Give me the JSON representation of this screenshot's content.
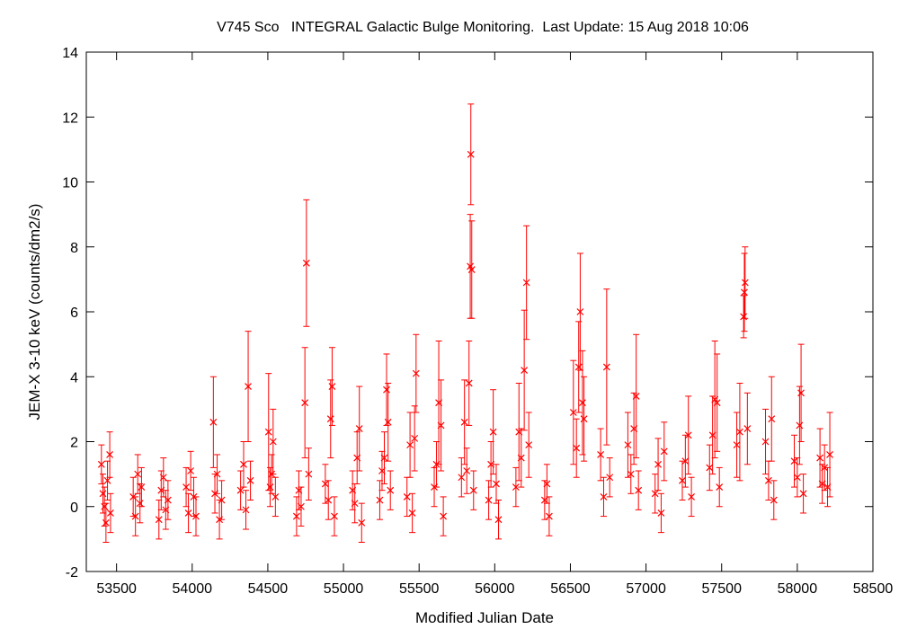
{
  "chart_data": {
    "type": "scatter",
    "title": "V745 Sco   INTEGRAL Galactic Bulge Monitoring.  Last Update: 15 Aug 2018 10:06",
    "xlabel": "Modified Julian Date",
    "ylabel": "JEM-X 3-10 keV (counts/dm2/s)",
    "xlim": [
      53300,
      58500
    ],
    "ylim": [
      -2,
      14
    ],
    "xticks": [
      53500,
      54000,
      54500,
      55000,
      55500,
      56000,
      56500,
      57000,
      57500,
      58000,
      58500
    ],
    "yticks": [
      -2,
      0,
      2,
      4,
      6,
      8,
      10,
      12,
      14
    ],
    "grid": false,
    "legend": "none",
    "marker": "x",
    "error_bars": true,
    "series": [
      {
        "color": "#ff0000",
        "points": [
          {
            "x": 53400,
            "y": 1.3,
            "err": 0.6
          },
          {
            "x": 53410,
            "y": 0.4,
            "err": 0.6
          },
          {
            "x": 53420,
            "y": 0.0,
            "err": 0.6
          },
          {
            "x": 53430,
            "y": -0.5,
            "err": 0.6
          },
          {
            "x": 53440,
            "y": 0.8,
            "err": 0.6
          },
          {
            "x": 53455,
            "y": 1.6,
            "err": 0.7
          },
          {
            "x": 53460,
            "y": -0.2,
            "err": 0.6
          },
          {
            "x": 53610,
            "y": 0.3,
            "err": 0.6
          },
          {
            "x": 53625,
            "y": -0.3,
            "err": 0.6
          },
          {
            "x": 53640,
            "y": 1.0,
            "err": 0.6
          },
          {
            "x": 53655,
            "y": 0.1,
            "err": 0.6
          },
          {
            "x": 53665,
            "y": 0.6,
            "err": 0.6
          },
          {
            "x": 53780,
            "y": -0.4,
            "err": 0.6
          },
          {
            "x": 53795,
            "y": 0.5,
            "err": 0.6
          },
          {
            "x": 53810,
            "y": 0.9,
            "err": 0.6
          },
          {
            "x": 53825,
            "y": -0.1,
            "err": 0.6
          },
          {
            "x": 53840,
            "y": 0.2,
            "err": 0.6
          },
          {
            "x": 53960,
            "y": 0.6,
            "err": 0.6
          },
          {
            "x": 53975,
            "y": -0.2,
            "err": 0.6
          },
          {
            "x": 53990,
            "y": 1.1,
            "err": 0.6
          },
          {
            "x": 54010,
            "y": 0.3,
            "err": 0.6
          },
          {
            "x": 54025,
            "y": -0.3,
            "err": 0.6
          },
          {
            "x": 54140,
            "y": 2.6,
            "err": 1.4
          },
          {
            "x": 54150,
            "y": 0.4,
            "err": 0.6
          },
          {
            "x": 54165,
            "y": 1.0,
            "err": 0.6
          },
          {
            "x": 54180,
            "y": -0.4,
            "err": 0.6
          },
          {
            "x": 54195,
            "y": 0.2,
            "err": 0.6
          },
          {
            "x": 54320,
            "y": 0.5,
            "err": 0.6
          },
          {
            "x": 54340,
            "y": 1.3,
            "err": 0.7
          },
          {
            "x": 54355,
            "y": -0.1,
            "err": 0.6
          },
          {
            "x": 54370,
            "y": 3.7,
            "err": 1.7
          },
          {
            "x": 54385,
            "y": 0.8,
            "err": 0.6
          },
          {
            "x": 54505,
            "y": 2.3,
            "err": 1.8
          },
          {
            "x": 54515,
            "y": 0.6,
            "err": 0.6
          },
          {
            "x": 54525,
            "y": 1.0,
            "err": 0.6
          },
          {
            "x": 54535,
            "y": 2.0,
            "err": 1.0
          },
          {
            "x": 54550,
            "y": 0.3,
            "err": 0.6
          },
          {
            "x": 54690,
            "y": -0.3,
            "err": 0.6
          },
          {
            "x": 54705,
            "y": 0.5,
            "err": 0.6
          },
          {
            "x": 54720,
            "y": 0.0,
            "err": 0.6
          },
          {
            "x": 54745,
            "y": 3.2,
            "err": 1.7
          },
          {
            "x": 54755,
            "y": 7.5,
            "err": 1.95
          },
          {
            "x": 54770,
            "y": 1.0,
            "err": 0.8
          },
          {
            "x": 54880,
            "y": 0.7,
            "err": 0.6
          },
          {
            "x": 54900,
            "y": 0.2,
            "err": 0.6
          },
          {
            "x": 54915,
            "y": 2.7,
            "err": 1.2
          },
          {
            "x": 54925,
            "y": 3.7,
            "err": 1.2
          },
          {
            "x": 54940,
            "y": -0.3,
            "err": 0.6
          },
          {
            "x": 55060,
            "y": 0.5,
            "err": 0.6
          },
          {
            "x": 55075,
            "y": 0.1,
            "err": 0.6
          },
          {
            "x": 55090,
            "y": 1.5,
            "err": 0.8
          },
          {
            "x": 55105,
            "y": 2.4,
            "err": 1.3
          },
          {
            "x": 55120,
            "y": -0.5,
            "err": 0.6
          },
          {
            "x": 55240,
            "y": 0.2,
            "err": 0.6
          },
          {
            "x": 55255,
            "y": 1.1,
            "err": 0.6
          },
          {
            "x": 55270,
            "y": 1.5,
            "err": 0.8
          },
          {
            "x": 55285,
            "y": 3.6,
            "err": 1.1
          },
          {
            "x": 55295,
            "y": 2.6,
            "err": 1.2
          },
          {
            "x": 55310,
            "y": 0.5,
            "err": 0.6
          },
          {
            "x": 55420,
            "y": 0.3,
            "err": 0.6
          },
          {
            "x": 55440,
            "y": 1.9,
            "err": 1.0
          },
          {
            "x": 55455,
            "y": -0.2,
            "err": 0.6
          },
          {
            "x": 55470,
            "y": 2.1,
            "err": 1.0
          },
          {
            "x": 55480,
            "y": 4.1,
            "err": 1.2
          },
          {
            "x": 55600,
            "y": 0.6,
            "err": 0.6
          },
          {
            "x": 55615,
            "y": 1.3,
            "err": 0.7
          },
          {
            "x": 55630,
            "y": 3.2,
            "err": 1.9
          },
          {
            "x": 55645,
            "y": 2.5,
            "err": 1.4
          },
          {
            "x": 55660,
            "y": -0.3,
            "err": 0.6
          },
          {
            "x": 55780,
            "y": 0.9,
            "err": 0.6
          },
          {
            "x": 55800,
            "y": 2.6,
            "err": 1.3
          },
          {
            "x": 55815,
            "y": 1.1,
            "err": 0.7
          },
          {
            "x": 55830,
            "y": 3.8,
            "err": 1.3
          },
          {
            "x": 55838,
            "y": 7.4,
            "err": 1.6
          },
          {
            "x": 55842,
            "y": 10.85,
            "err": 1.55
          },
          {
            "x": 55848,
            "y": 7.3,
            "err": 1.5
          },
          {
            "x": 55860,
            "y": 0.5,
            "err": 0.6
          },
          {
            "x": 55960,
            "y": 0.2,
            "err": 0.6
          },
          {
            "x": 55975,
            "y": 1.3,
            "err": 0.7
          },
          {
            "x": 55990,
            "y": 2.3,
            "err": 1.3
          },
          {
            "x": 56010,
            "y": 0.7,
            "err": 0.6
          },
          {
            "x": 56025,
            "y": -0.4,
            "err": 0.6
          },
          {
            "x": 56140,
            "y": 0.6,
            "err": 0.6
          },
          {
            "x": 56160,
            "y": 2.3,
            "err": 1.5
          },
          {
            "x": 56175,
            "y": 1.5,
            "err": 0.9
          },
          {
            "x": 56195,
            "y": 4.2,
            "err": 1.85
          },
          {
            "x": 56210,
            "y": 6.9,
            "err": 1.75
          },
          {
            "x": 56225,
            "y": 1.9,
            "err": 1.0
          },
          {
            "x": 56330,
            "y": 0.2,
            "err": 0.6
          },
          {
            "x": 56345,
            "y": 0.7,
            "err": 0.6
          },
          {
            "x": 56360,
            "y": -0.3,
            "err": 0.6
          },
          {
            "x": 56520,
            "y": 2.9,
            "err": 1.6
          },
          {
            "x": 56540,
            "y": 1.8,
            "err": 0.9
          },
          {
            "x": 56555,
            "y": 4.3,
            "err": 1.4
          },
          {
            "x": 56565,
            "y": 6.0,
            "err": 1.8
          },
          {
            "x": 56580,
            "y": 3.2,
            "err": 1.6
          },
          {
            "x": 56590,
            "y": 2.7,
            "err": 1.3
          },
          {
            "x": 56700,
            "y": 1.6,
            "err": 0.8
          },
          {
            "x": 56720,
            "y": 0.3,
            "err": 0.6
          },
          {
            "x": 56740,
            "y": 4.3,
            "err": 2.4
          },
          {
            "x": 56760,
            "y": 0.9,
            "err": 0.6
          },
          {
            "x": 56880,
            "y": 1.9,
            "err": 1.0
          },
          {
            "x": 56900,
            "y": 1.0,
            "err": 0.6
          },
          {
            "x": 56920,
            "y": 2.4,
            "err": 1.1
          },
          {
            "x": 56935,
            "y": 3.4,
            "err": 1.9
          },
          {
            "x": 56950,
            "y": 0.5,
            "err": 0.6
          },
          {
            "x": 57060,
            "y": 0.4,
            "err": 0.6
          },
          {
            "x": 57080,
            "y": 1.3,
            "err": 0.8
          },
          {
            "x": 57100,
            "y": -0.2,
            "err": 0.6
          },
          {
            "x": 57120,
            "y": 1.7,
            "err": 0.9
          },
          {
            "x": 57240,
            "y": 0.8,
            "err": 0.6
          },
          {
            "x": 57260,
            "y": 1.4,
            "err": 0.8
          },
          {
            "x": 57280,
            "y": 2.2,
            "err": 1.2
          },
          {
            "x": 57300,
            "y": 0.3,
            "err": 0.6
          },
          {
            "x": 57420,
            "y": 1.2,
            "err": 0.7
          },
          {
            "x": 57440,
            "y": 2.2,
            "err": 1.2
          },
          {
            "x": 57455,
            "y": 3.3,
            "err": 1.8
          },
          {
            "x": 57470,
            "y": 3.2,
            "err": 1.5
          },
          {
            "x": 57485,
            "y": 0.6,
            "err": 0.6
          },
          {
            "x": 57600,
            "y": 1.9,
            "err": 1.0
          },
          {
            "x": 57620,
            "y": 2.3,
            "err": 1.5
          },
          {
            "x": 57645,
            "y": 5.85,
            "err": 0.65
          },
          {
            "x": 57650,
            "y": 6.6,
            "err": 1.2
          },
          {
            "x": 57655,
            "y": 6.9,
            "err": 1.1
          },
          {
            "x": 57670,
            "y": 2.4,
            "err": 1.1
          },
          {
            "x": 57790,
            "y": 2.0,
            "err": 1.0
          },
          {
            "x": 57810,
            "y": 0.8,
            "err": 0.6
          },
          {
            "x": 57830,
            "y": 2.7,
            "err": 1.3
          },
          {
            "x": 57845,
            "y": 0.2,
            "err": 0.6
          },
          {
            "x": 57980,
            "y": 1.4,
            "err": 0.8
          },
          {
            "x": 58000,
            "y": 0.9,
            "err": 0.6
          },
          {
            "x": 58015,
            "y": 2.5,
            "err": 1.2
          },
          {
            "x": 58025,
            "y": 3.5,
            "err": 1.5
          },
          {
            "x": 58040,
            "y": 0.4,
            "err": 0.6
          },
          {
            "x": 58150,
            "y": 1.5,
            "err": 0.9
          },
          {
            "x": 58165,
            "y": 0.7,
            "err": 0.6
          },
          {
            "x": 58180,
            "y": 1.2,
            "err": 0.7
          },
          {
            "x": 58200,
            "y": 0.6,
            "err": 0.6
          },
          {
            "x": 58215,
            "y": 1.6,
            "err": 1.3
          }
        ]
      }
    ]
  }
}
